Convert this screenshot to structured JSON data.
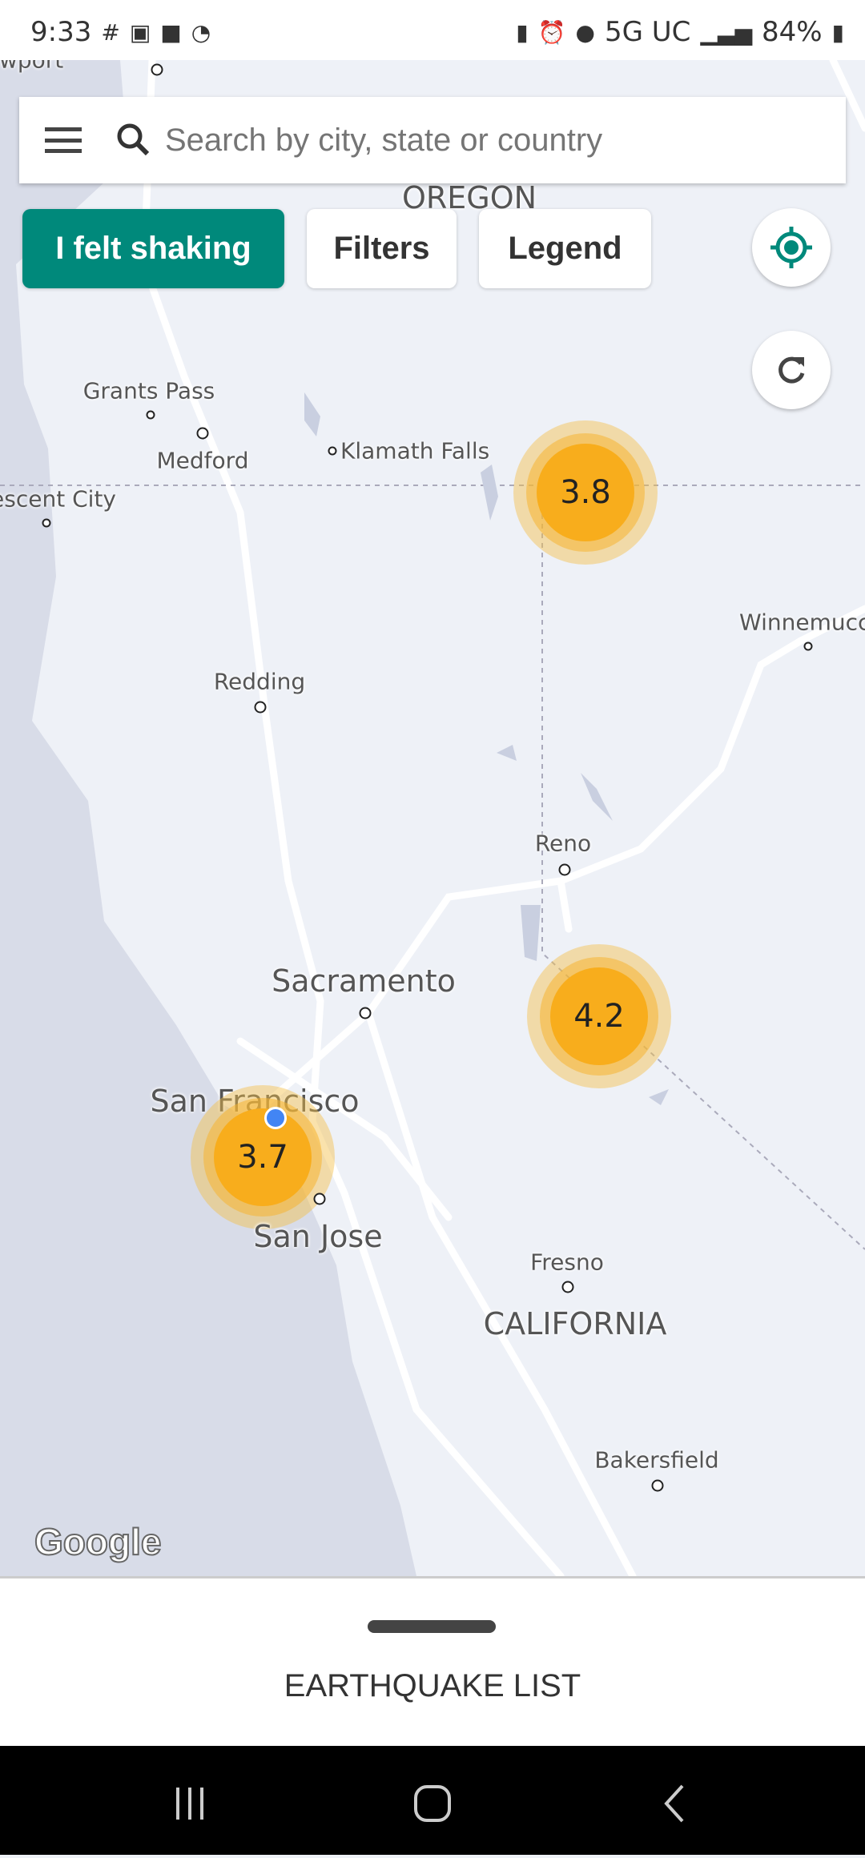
{
  "status_bar": {
    "time": "9:33",
    "network": "5G UC",
    "battery": "84%",
    "icons": [
      "slack-icon",
      "calendar-31-icon",
      "calendar-2-icon",
      "wifi-icon",
      "recycle-icon",
      "alarm-icon",
      "location-icon",
      "signal-icon",
      "battery-icon"
    ]
  },
  "search": {
    "placeholder": "Search by city, state or country"
  },
  "buttons": {
    "felt": "I felt shaking",
    "filters": "Filters",
    "legend": "Legend"
  },
  "colors": {
    "accent": "#00897b",
    "quake": "#f8ad1c",
    "land": "#eef1f7",
    "water": "#d8dce8"
  },
  "map": {
    "labels": {
      "newport": "Newport",
      "oregon": "OREGON",
      "grants_pass": "Grants Pass",
      "medford": "Medford",
      "klamath": "Klamath Falls",
      "crescent": "Crescent City",
      "winnemucca": "Winnemucca",
      "redding": "Redding",
      "reno": "Reno",
      "sacramento": "Sacramento",
      "san_francisco": "San Francisco",
      "san_jose": "San Jose",
      "fresno": "Fresno",
      "california": "CALIFORNIA",
      "bakersfield": "Bakersfield"
    },
    "quakes": [
      {
        "magnitude": "3.8"
      },
      {
        "magnitude": "4.2"
      },
      {
        "magnitude": "3.7"
      }
    ],
    "attribution": "Google"
  },
  "sheet": {
    "title": "EARTHQUAKE LIST"
  }
}
